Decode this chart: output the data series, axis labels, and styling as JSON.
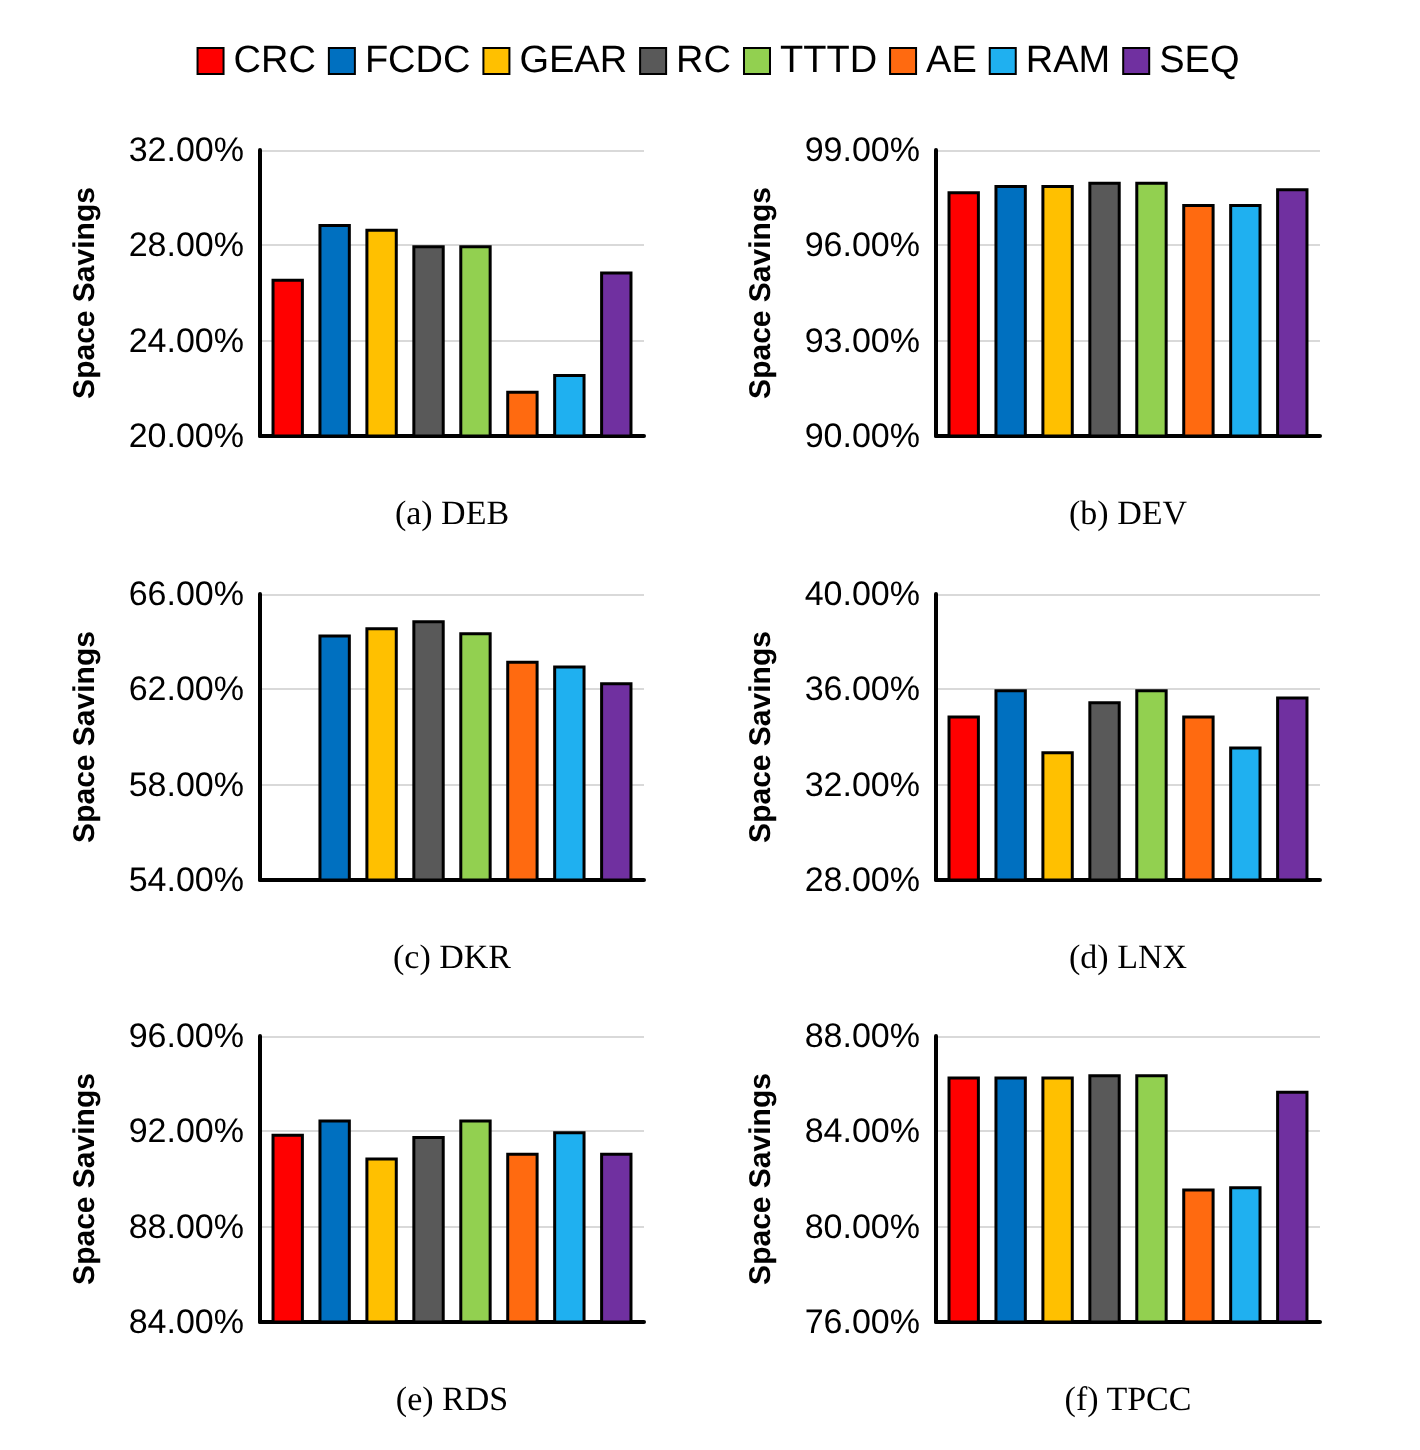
{
  "chart_data": [
    {
      "type": "bar",
      "xlabel": "(a) DEB",
      "ylabel": "Space Savings",
      "categories": [
        null
      ],
      "legend": "top",
      "grid": "y",
      "ylim": [
        20,
        32
      ],
      "yticks": [
        {
          "value": 20,
          "label": "20.00%"
        },
        {
          "value": 24,
          "label": "24.00%"
        },
        {
          "value": 28,
          "label": "28.00%"
        },
        {
          "value": 32,
          "label": "32.00%"
        }
      ],
      "series": [
        {
          "name": "CRC",
          "color": "#ff0000",
          "values": [
            26.6
          ]
        },
        {
          "name": "FCDC",
          "color": "#0070c0",
          "values": [
            28.9
          ]
        },
        {
          "name": "GEAR",
          "color": "#ffc000",
          "values": [
            28.7
          ]
        },
        {
          "name": "RC",
          "color": "#595959",
          "values": [
            28.0
          ]
        },
        {
          "name": "TTTD",
          "color": "#92d050",
          "values": [
            28.0
          ]
        },
        {
          "name": "AE",
          "color": "#ff6a10",
          "values": [
            21.9
          ]
        },
        {
          "name": "RAM",
          "color": "#1fb0f0",
          "values": [
            22.6
          ]
        },
        {
          "name": "SEQ",
          "color": "#7030a0",
          "values": [
            26.9
          ]
        }
      ]
    },
    {
      "type": "bar",
      "xlabel": "(b) DEV",
      "ylabel": "Space Savings",
      "categories": [
        null
      ],
      "legend": false,
      "grid": "y",
      "ylim": [
        90,
        99
      ],
      "yticks": [
        {
          "value": 90,
          "label": "90.00%"
        },
        {
          "value": 93,
          "label": "93.00%"
        },
        {
          "value": 96,
          "label": "96.00%"
        },
        {
          "value": 99,
          "label": "99.00%"
        }
      ],
      "series": [
        {
          "color": "#ff0000",
          "values": [
            97.7
          ]
        },
        {
          "color": "#0070c0",
          "values": [
            97.9
          ]
        },
        {
          "color": "#ffc000",
          "values": [
            97.9
          ]
        },
        {
          "color": "#595959",
          "values": [
            98.0
          ]
        },
        {
          "color": "#92d050",
          "values": [
            98.0
          ]
        },
        {
          "color": "#ff6a10",
          "values": [
            97.3
          ]
        },
        {
          "color": "#1fb0f0",
          "values": [
            97.3
          ]
        },
        {
          "color": "#7030a0",
          "values": [
            97.8
          ]
        }
      ]
    },
    {
      "type": "bar",
      "xlabel": "(c) DKR",
      "ylabel": "Space Savings",
      "categories": [
        null
      ],
      "legend": false,
      "grid": "y",
      "ylim": [
        54,
        66
      ],
      "yticks": [
        {
          "value": 54,
          "label": "54.00%"
        },
        {
          "value": 58,
          "label": "58.00%"
        },
        {
          "value": 62,
          "label": "62.00%"
        },
        {
          "value": 66,
          "label": "66.00%"
        }
      ],
      "series": [
        {
          "color": "#ff0000",
          "values": [
            null
          ]
        },
        {
          "color": "#0070c0",
          "values": [
            64.3
          ]
        },
        {
          "color": "#ffc000",
          "values": [
            64.6
          ]
        },
        {
          "color": "#595959",
          "values": [
            64.9
          ]
        },
        {
          "color": "#92d050",
          "values": [
            64.4
          ]
        },
        {
          "color": "#ff6a10",
          "values": [
            63.2
          ]
        },
        {
          "color": "#1fb0f0",
          "values": [
            63.0
          ]
        },
        {
          "color": "#7030a0",
          "values": [
            62.3
          ]
        }
      ]
    },
    {
      "type": "bar",
      "xlabel": "(d) LNX",
      "ylabel": "Space Savings",
      "categories": [
        null
      ],
      "legend": false,
      "grid": "y",
      "ylim": [
        28,
        40
      ],
      "yticks": [
        {
          "value": 28,
          "label": "28.00%"
        },
        {
          "value": 32,
          "label": "32.00%"
        },
        {
          "value": 36,
          "label": "36.00%"
        },
        {
          "value": 40,
          "label": "40.00%"
        }
      ],
      "series": [
        {
          "color": "#ff0000",
          "values": [
            34.9
          ]
        },
        {
          "color": "#0070c0",
          "values": [
            36.0
          ]
        },
        {
          "color": "#ffc000",
          "values": [
            33.4
          ]
        },
        {
          "color": "#595959",
          "values": [
            35.5
          ]
        },
        {
          "color": "#92d050",
          "values": [
            36.0
          ]
        },
        {
          "color": "#ff6a10",
          "values": [
            34.9
          ]
        },
        {
          "color": "#1fb0f0",
          "values": [
            33.6
          ]
        },
        {
          "color": "#7030a0",
          "values": [
            35.7
          ]
        }
      ]
    },
    {
      "type": "bar",
      "xlabel": "(e) RDS",
      "ylabel": "Space Savings",
      "categories": [
        null
      ],
      "legend": false,
      "grid": "y",
      "ylim": [
        84,
        96
      ],
      "yticks": [
        {
          "value": 84,
          "label": "84.00%"
        },
        {
          "value": 88,
          "label": "88.00%"
        },
        {
          "value": 92,
          "label": "92.00%"
        },
        {
          "value": 96,
          "label": "96.00%"
        }
      ],
      "series": [
        {
          "color": "#ff0000",
          "values": [
            91.9
          ]
        },
        {
          "color": "#0070c0",
          "values": [
            92.5
          ]
        },
        {
          "color": "#ffc000",
          "values": [
            90.9
          ]
        },
        {
          "color": "#595959",
          "values": [
            91.8
          ]
        },
        {
          "color": "#92d050",
          "values": [
            92.5
          ]
        },
        {
          "color": "#ff6a10",
          "values": [
            91.1
          ]
        },
        {
          "color": "#1fb0f0",
          "values": [
            92.0
          ]
        },
        {
          "color": "#7030a0",
          "values": [
            91.1
          ]
        }
      ]
    },
    {
      "type": "bar",
      "xlabel": "(f) TPCC",
      "ylabel": "Space Savings",
      "categories": [
        null
      ],
      "legend": false,
      "grid": "y",
      "ylim": [
        76,
        88
      ],
      "yticks": [
        {
          "value": 76,
          "label": "76.00%"
        },
        {
          "value": 80,
          "label": "80.00%"
        },
        {
          "value": 84,
          "label": "84.00%"
        },
        {
          "value": 88,
          "label": "88.00%"
        }
      ],
      "series": [
        {
          "color": "#ff0000",
          "values": [
            86.3
          ]
        },
        {
          "color": "#0070c0",
          "values": [
            86.3
          ]
        },
        {
          "color": "#ffc000",
          "values": [
            86.3
          ]
        },
        {
          "color": "#595959",
          "values": [
            86.4
          ]
        },
        {
          "color": "#92d050",
          "values": [
            86.4
          ]
        },
        {
          "color": "#ff6a10",
          "values": [
            81.6
          ]
        },
        {
          "color": "#1fb0f0",
          "values": [
            81.7
          ]
        },
        {
          "color": "#7030a0",
          "values": [
            85.7
          ]
        }
      ]
    }
  ]
}
